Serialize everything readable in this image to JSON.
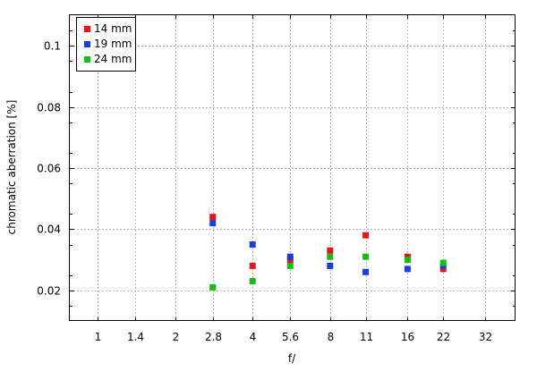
{
  "chart_data": {
    "type": "scatter",
    "title": "",
    "xlabel": "f/",
    "ylabel": "chromatic aberration [%]",
    "x_scale": "log2",
    "categories": [
      "1",
      "1.4",
      "2",
      "2.8",
      "4",
      "5.6",
      "8",
      "11",
      "16",
      "22",
      "32"
    ],
    "x_ticks": [
      1,
      1.4,
      2,
      2.8,
      4,
      5.6,
      8,
      11,
      16,
      22,
      32
    ],
    "xlim": [
      0.78,
      42
    ],
    "ylim": [
      0.01,
      0.11
    ],
    "y_ticks": [
      0.02,
      0.04,
      0.06,
      0.08,
      0.1
    ],
    "y_tick_labels": [
      "0.02",
      "0.04",
      "0.06",
      "0.08",
      "0.1"
    ],
    "grid": true,
    "legend_position": "top-left",
    "series": [
      {
        "name": "14 mm",
        "color": "#e8141a",
        "x": [
          2.8,
          4,
          5.6,
          8,
          11,
          16,
          22
        ],
        "values": [
          0.044,
          0.028,
          0.03,
          0.033,
          0.038,
          0.031,
          0.027
        ]
      },
      {
        "name": "19 mm",
        "color": "#1e3cdc",
        "x": [
          2.8,
          4,
          5.6,
          8,
          11,
          16,
          22
        ],
        "values": [
          0.042,
          0.035,
          0.031,
          0.028,
          0.026,
          0.027,
          0.028
        ]
      },
      {
        "name": "24 mm",
        "color": "#14be14",
        "x": [
          2.8,
          4,
          5.6,
          8,
          11,
          16,
          22
        ],
        "values": [
          0.021,
          0.023,
          0.028,
          0.031,
          0.031,
          0.03,
          0.029
        ]
      }
    ]
  }
}
